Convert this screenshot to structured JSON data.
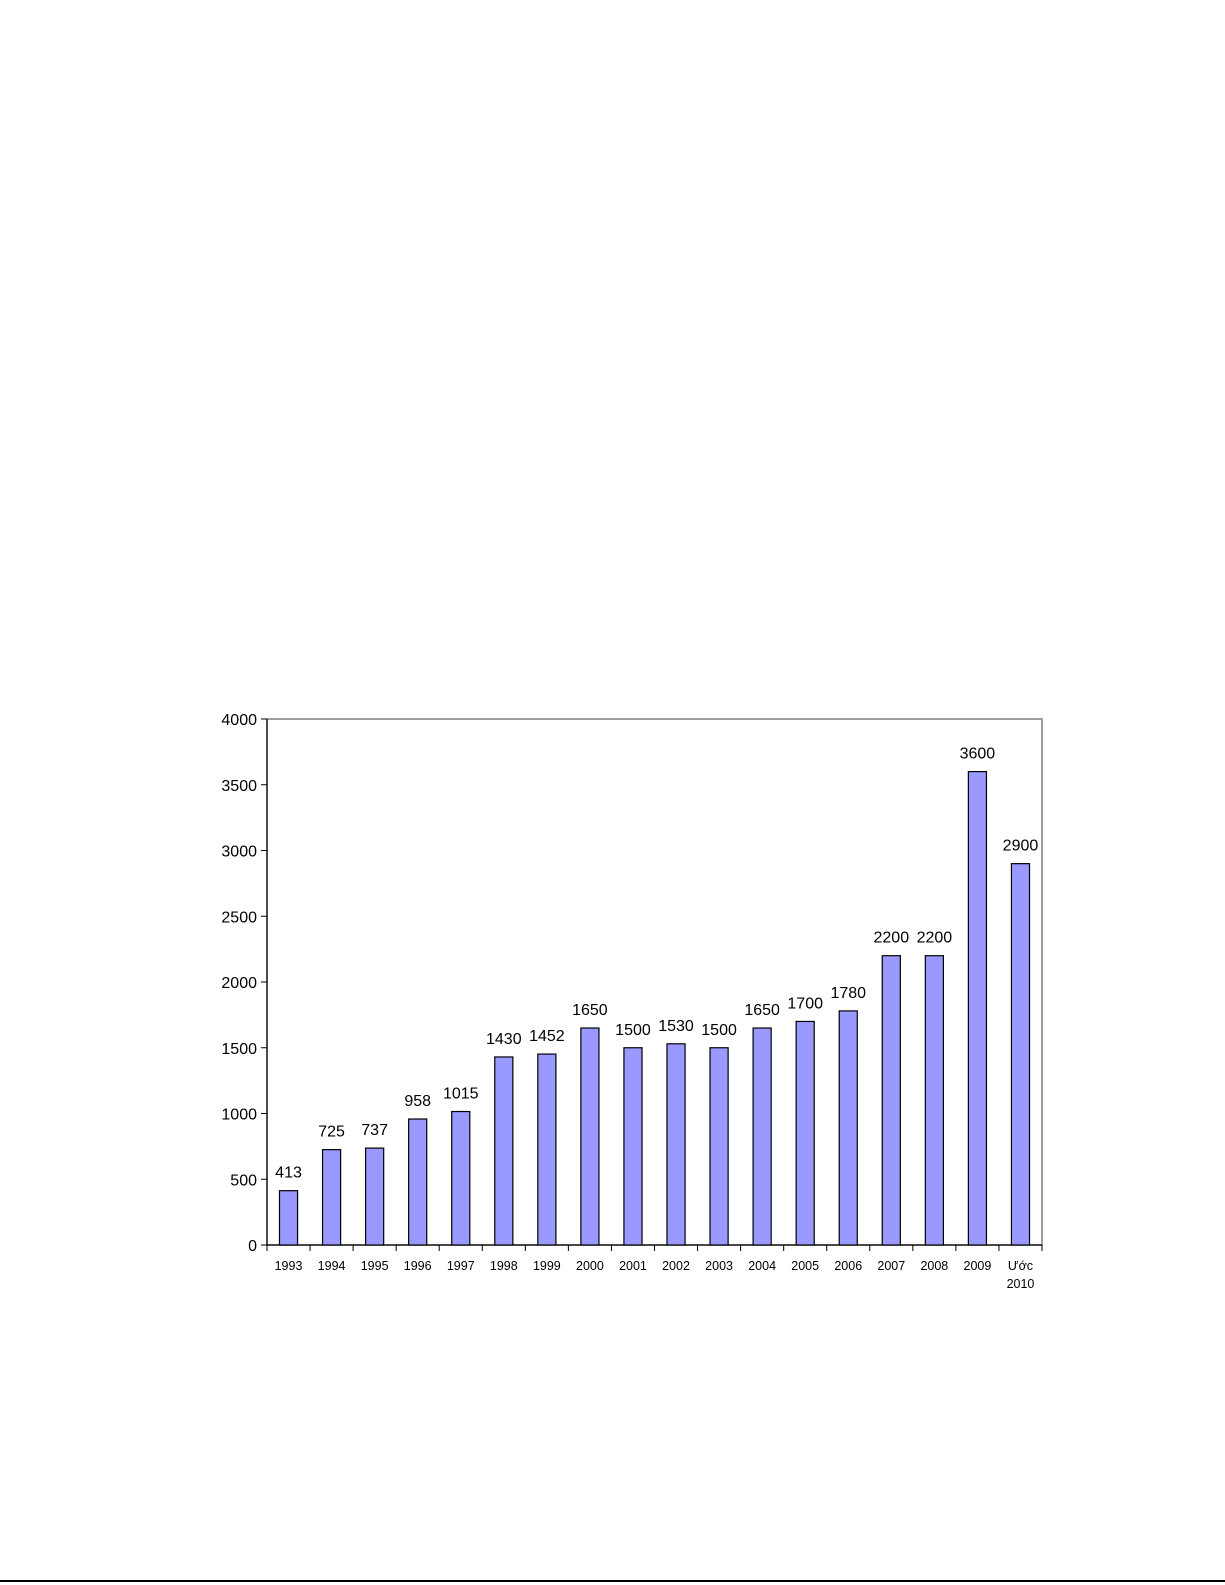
{
  "chart_data": {
    "type": "bar",
    "categories": [
      "1993",
      "1994",
      "1995",
      "1996",
      "1997",
      "1998",
      "1999",
      "2000",
      "2001",
      "2002",
      "2003",
      "2004",
      "2005",
      "2006",
      "2007",
      "2008",
      "2009",
      "Ước 2010"
    ],
    "values": [
      413,
      725,
      737,
      958,
      1015,
      1430,
      1452,
      1650,
      1500,
      1530,
      1500,
      1650,
      1700,
      1780,
      2200,
      2200,
      3600,
      2900
    ],
    "title": "",
    "xlabel": "",
    "ylabel": "",
    "ylim": [
      0,
      4000
    ],
    "yticks": [
      0,
      500,
      1000,
      1500,
      2000,
      2500,
      3000,
      3500,
      4000
    ],
    "grid": false,
    "legend": "none",
    "bar_color": "#9999FF",
    "bar_edge_color": "#000000"
  }
}
